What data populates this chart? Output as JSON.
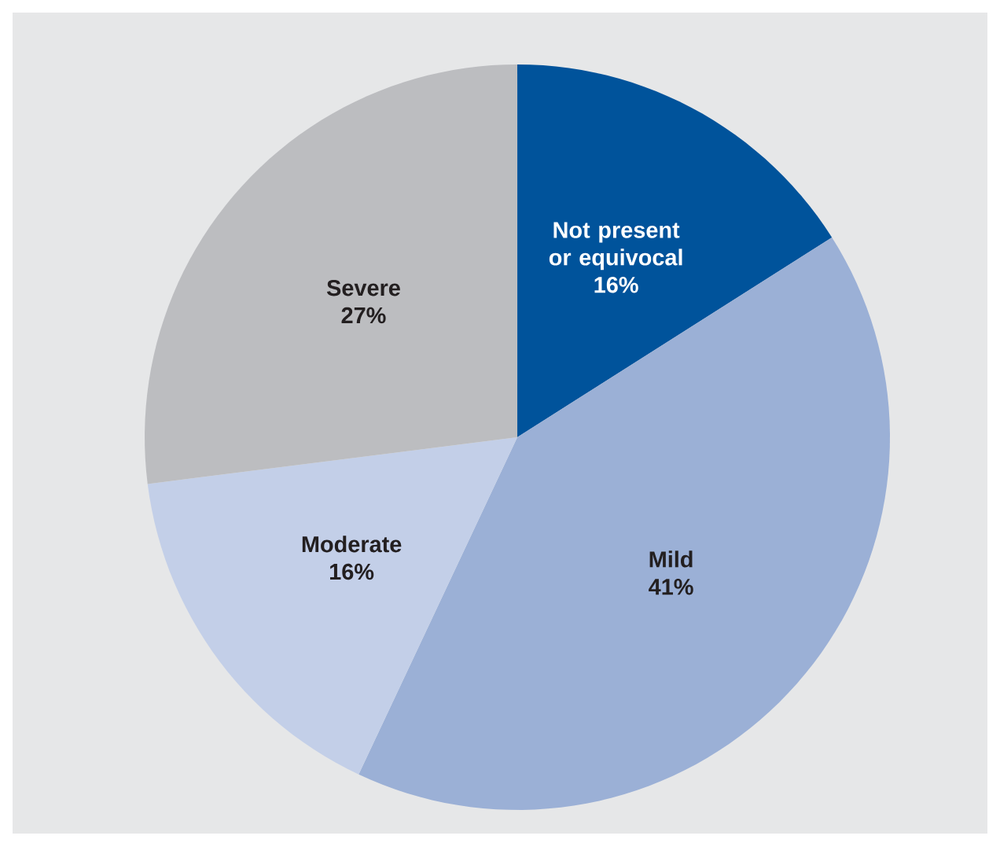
{
  "chart_data": {
    "type": "pie",
    "categories": [
      "Not present or equivocal",
      "Mild",
      "Moderate",
      "Severe"
    ],
    "values": [
      16,
      41,
      16,
      27
    ],
    "value_labels": [
      "16%",
      "41%",
      "16%",
      "27%"
    ],
    "colors": [
      "#00539b",
      "#9bb0d6",
      "#c3cfe8",
      "#bcbdc0"
    ]
  }
}
